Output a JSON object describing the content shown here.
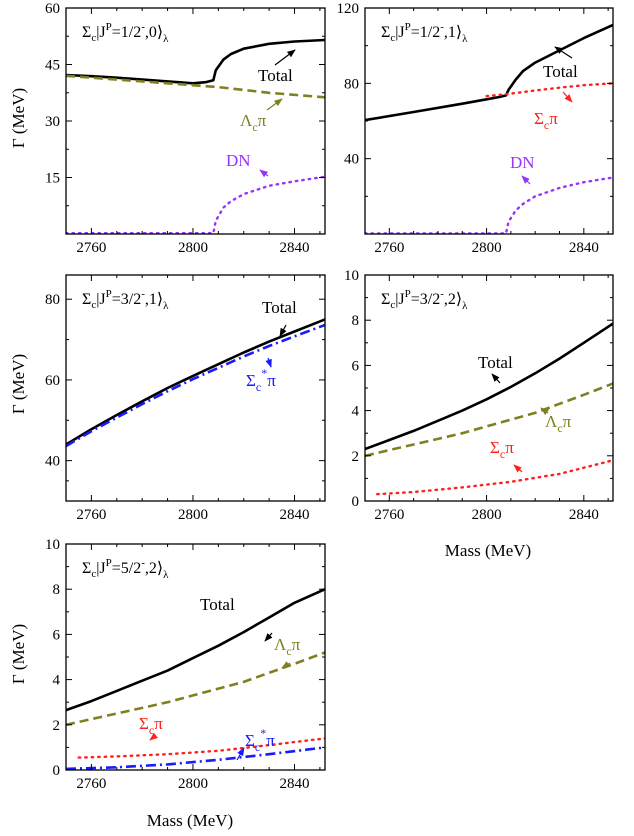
{
  "figure": {
    "ylabel": "Γ (MeV)",
    "xlabel": "Mass (MeV)",
    "series_colors": {
      "Total": "#000000",
      "Λcπ": "#808020",
      "Σcπ": "#ff2020",
      "DN": "#9933ff",
      "Σc*π": "#1a1aff"
    }
  },
  "chart_data": [
    {
      "id": "p1",
      "type": "line",
      "title": "Σc|J^P=1/2⁻,0⟩λ",
      "title_parts": {
        "sym": "Σ",
        "sub": "c",
        "mid": "|J",
        "sup": "P",
        "eq": "=1/2",
        "sup2": "-",
        "rest": ",0⟩",
        "sub2": "λ"
      },
      "xlim": [
        2750,
        2852
      ],
      "ylim": [
        0,
        60
      ],
      "xticks": [
        2760,
        2800,
        2840
      ],
      "yticks": [
        15,
        30,
        45,
        60
      ],
      "ytick_labels": [
        "15",
        "30",
        "45",
        "60"
      ],
      "series": [
        {
          "name": "Total",
          "color": "#000000",
          "style": "solid",
          "x": [
            2750,
            2760,
            2770,
            2780,
            2790,
            2800,
            2805,
            2808,
            2809,
            2812,
            2815,
            2820,
            2830,
            2840,
            2852
          ],
          "y": [
            42.2,
            41.9,
            41.5,
            41.0,
            40.5,
            40.0,
            40.3,
            40.8,
            43.5,
            46.3,
            47.8,
            49.2,
            50.5,
            51.1,
            51.5
          ]
        },
        {
          "name": "Λcπ",
          "color": "#808020",
          "style": "dash",
          "x": [
            2750,
            2770,
            2790,
            2810,
            2830,
            2852
          ],
          "y": [
            42.0,
            41.0,
            40.0,
            39.0,
            37.5,
            36.3
          ]
        },
        {
          "name": "DN",
          "color": "#9933ff",
          "style": "dot",
          "x": [
            2750,
            2808,
            2809,
            2812,
            2815,
            2820,
            2830,
            2840,
            2852
          ],
          "y": [
            0.2,
            0.2,
            3.5,
            7.0,
            8.7,
            10.6,
            12.8,
            14.0,
            15.2
          ]
        }
      ],
      "annotations": [
        {
          "text": "Total",
          "color": "#000000"
        },
        {
          "text": "Λcπ",
          "main": "Λ",
          "sub": "c",
          "after": "π",
          "color": "#808020"
        },
        {
          "text": "DN",
          "color": "#9933ff"
        }
      ]
    },
    {
      "id": "p2",
      "type": "line",
      "title": "Σc|J^P=1/2⁻,1⟩λ",
      "title_parts": {
        "sym": "Σ",
        "sub": "c",
        "mid": "|J",
        "sup": "P",
        "eq": "=1/2",
        "sup2": "-",
        "rest": ",1⟩",
        "sub2": "λ"
      },
      "xlim": [
        2750,
        2852
      ],
      "ylim": [
        0,
        120
      ],
      "xticks": [
        2760,
        2800,
        2840
      ],
      "yticks": [
        40,
        80,
        120
      ],
      "ytick_labels": [
        "40",
        "80",
        "120"
      ],
      "series": [
        {
          "name": "Total",
          "color": "#000000",
          "style": "solid",
          "x": [
            2750,
            2770,
            2790,
            2800,
            2805,
            2808,
            2809,
            2812,
            2815,
            2820,
            2830,
            2840,
            2852
          ],
          "y": [
            60.5,
            64.8,
            69.2,
            71.5,
            72.7,
            73.6,
            76.5,
            82.0,
            86.5,
            91.0,
            97.5,
            104.0,
            111.0
          ]
        },
        {
          "name": "Σcπ",
          "color": "#ff2020",
          "style": "dot",
          "x": [
            2800,
            2809,
            2820,
            2830,
            2840,
            2852
          ],
          "y": [
            73.2,
            74.4,
            76.2,
            77.7,
            79.0,
            80.0
          ]
        },
        {
          "name": "DN",
          "color": "#9933ff",
          "style": "dot",
          "x": [
            2750,
            2808,
            2809,
            2812,
            2815,
            2820,
            2830,
            2840,
            2852
          ],
          "y": [
            0.3,
            0.3,
            6.5,
            12.5,
            16.0,
            20.0,
            24.5,
            27.5,
            30.0
          ]
        }
      ],
      "annotations": [
        {
          "text": "Total",
          "color": "#000000"
        },
        {
          "text": "Σcπ",
          "main": "Σ",
          "sub": "c",
          "after": "π",
          "color": "#ff2020"
        },
        {
          "text": "DN",
          "color": "#9933ff"
        }
      ]
    },
    {
      "id": "p3",
      "type": "line",
      "title": "Σc|J^P=3/2⁻,1⟩λ",
      "title_parts": {
        "sym": "Σ",
        "sub": "c",
        "mid": "|J",
        "sup": "P",
        "eq": "=3/2",
        "sup2": "-",
        "rest": ",1⟩",
        "sub2": "λ"
      },
      "xlim": [
        2750,
        2852
      ],
      "ylim": [
        30,
        86
      ],
      "xticks": [
        2760,
        2800,
        2840
      ],
      "yticks": [
        40,
        60,
        80
      ],
      "ytick_labels": [
        "40",
        "60",
        "80"
      ],
      "series": [
        {
          "name": "Total",
          "color": "#000000",
          "style": "solid",
          "x": [
            2750,
            2760,
            2770,
            2780,
            2790,
            2800,
            2810,
            2820,
            2830,
            2840,
            2852
          ],
          "y": [
            44.0,
            47.8,
            51.3,
            54.7,
            58.0,
            61.0,
            63.9,
            66.8,
            69.5,
            72.0,
            75.0
          ]
        },
        {
          "name": "Σc*π",
          "color": "#1a1aff",
          "style": "dashdot",
          "x": [
            2750,
            2760,
            2770,
            2780,
            2790,
            2800,
            2810,
            2820,
            2830,
            2840,
            2852
          ],
          "y": [
            43.6,
            47.3,
            50.7,
            54.0,
            57.2,
            60.2,
            63.0,
            65.8,
            68.4,
            70.8,
            73.6
          ]
        }
      ],
      "annotations": [
        {
          "text": "Total",
          "color": "#000000"
        },
        {
          "text": "Σc*π",
          "main": "Σ",
          "sub": "c",
          "sup": "*",
          "after": "π",
          "color": "#1a1aff"
        }
      ]
    },
    {
      "id": "p4",
      "type": "line",
      "title": "Σc|J^P=3/2⁻,2⟩λ",
      "title_parts": {
        "sym": "Σ",
        "sub": "c",
        "mid": "|J",
        "sup": "P",
        "eq": "=3/2",
        "sup2": "-",
        "rest": ",2⟩",
        "sub2": "λ"
      },
      "xlim": [
        2750,
        2852
      ],
      "ylim": [
        0,
        10
      ],
      "xticks": [
        2760,
        2800,
        2840
      ],
      "yticks": [
        0,
        2,
        4,
        6,
        8,
        10
      ],
      "ytick_labels": [
        "0",
        "2",
        "4",
        "6",
        "8",
        "10"
      ],
      "series": [
        {
          "name": "Total",
          "color": "#000000",
          "style": "solid",
          "x": [
            2750,
            2760,
            2770,
            2780,
            2790,
            2800,
            2810,
            2820,
            2830,
            2840,
            2852
          ],
          "y": [
            2.3,
            2.7,
            3.1,
            3.55,
            4.0,
            4.5,
            5.05,
            5.65,
            6.3,
            7.0,
            7.85
          ]
        },
        {
          "name": "Λcπ",
          "color": "#808020",
          "style": "dash",
          "x": [
            2750,
            2760,
            2770,
            2780,
            2790,
            2800,
            2810,
            2820,
            2830,
            2840,
            2852
          ],
          "y": [
            2.0,
            2.25,
            2.5,
            2.75,
            3.0,
            3.3,
            3.6,
            3.9,
            4.3,
            4.7,
            5.2
          ]
        },
        {
          "name": "Σcπ",
          "color": "#ff2020",
          "style": "dot",
          "x": [
            2755,
            2770,
            2790,
            2810,
            2830,
            2852
          ],
          "y": [
            0.3,
            0.4,
            0.6,
            0.85,
            1.2,
            1.8
          ]
        }
      ],
      "annotations": [
        {
          "text": "Total",
          "color": "#000000"
        },
        {
          "text": "Λcπ",
          "main": "Λ",
          "sub": "c",
          "after": "π",
          "color": "#808020"
        },
        {
          "text": "Σcπ",
          "main": "Σ",
          "sub": "c",
          "after": "π",
          "color": "#ff2020"
        }
      ]
    },
    {
      "id": "p5",
      "type": "line",
      "title": "Σc|J^P=5/2⁻,2⟩λ",
      "title_parts": {
        "sym": "Σ",
        "sub": "c",
        "mid": "|J",
        "sup": "P",
        "eq": "=5/2",
        "sup2": "-",
        "rest": ",2⟩",
        "sub2": "λ"
      },
      "xlim": [
        2750,
        2852
      ],
      "ylim": [
        0,
        10
      ],
      "xticks": [
        2760,
        2800,
        2840
      ],
      "yticks": [
        0,
        2,
        4,
        6,
        8,
        10
      ],
      "ytick_labels": [
        "0",
        "2",
        "4",
        "6",
        "8",
        "10"
      ],
      "series": [
        {
          "name": "Total",
          "color": "#000000",
          "style": "solid",
          "x": [
            2750,
            2760,
            2770,
            2780,
            2790,
            2800,
            2810,
            2820,
            2830,
            2840,
            2852
          ],
          "y": [
            2.65,
            3.05,
            3.5,
            3.95,
            4.4,
            4.95,
            5.5,
            6.1,
            6.75,
            7.4,
            8.0
          ]
        },
        {
          "name": "Λcπ",
          "color": "#808020",
          "style": "dash",
          "x": [
            2750,
            2760,
            2770,
            2780,
            2790,
            2800,
            2810,
            2820,
            2830,
            2840,
            2852
          ],
          "y": [
            2.0,
            2.25,
            2.5,
            2.75,
            3.0,
            3.3,
            3.6,
            3.9,
            4.3,
            4.7,
            5.2
          ]
        },
        {
          "name": "Σcπ",
          "color": "#ff2020",
          "style": "dot",
          "x": [
            2755,
            2770,
            2790,
            2810,
            2830,
            2852
          ],
          "y": [
            0.55,
            0.6,
            0.7,
            0.85,
            1.1,
            1.4
          ]
        },
        {
          "name": "Σc*π",
          "color": "#1a1aff",
          "style": "dashdot",
          "x": [
            2750,
            2770,
            2790,
            2810,
            2830,
            2852
          ],
          "y": [
            0.05,
            0.12,
            0.25,
            0.45,
            0.7,
            1.0
          ]
        }
      ],
      "annotations": [
        {
          "text": "Total",
          "color": "#000000"
        },
        {
          "text": "Λcπ",
          "main": "Λ",
          "sub": "c",
          "after": "π",
          "color": "#808020"
        },
        {
          "text": "Σcπ",
          "main": "Σ",
          "sub": "c",
          "after": "π",
          "color": "#ff2020"
        },
        {
          "text": "Σc*π",
          "main": "Σ",
          "sub": "c",
          "sup": "*",
          "after": "π",
          "color": "#1a1aff"
        }
      ]
    }
  ]
}
